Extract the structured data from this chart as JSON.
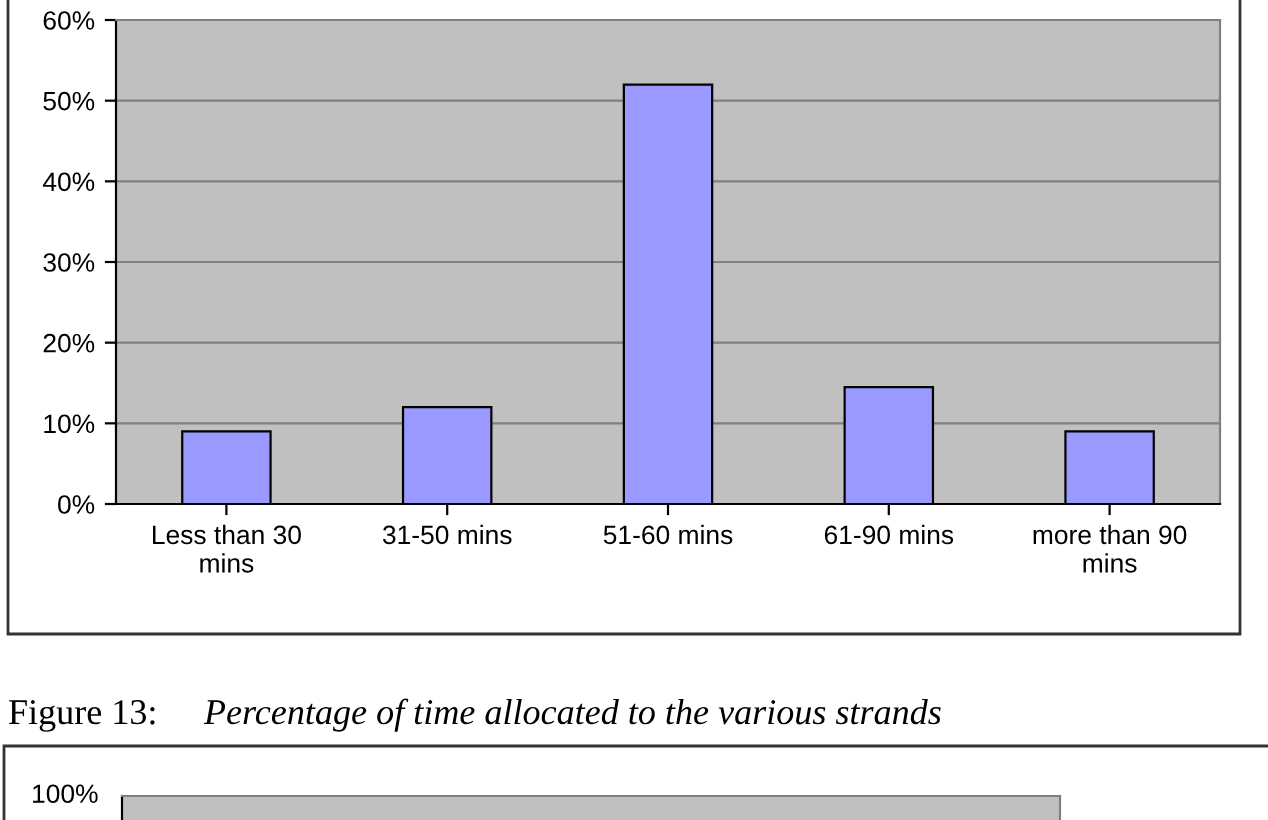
{
  "chart_data": [
    {
      "type": "bar",
      "categories": [
        "Less than 30\nmins",
        "31-50 mins",
        "51-60 mins",
        "61-90 mins",
        "more than 90\nmins"
      ],
      "values": [
        9,
        12,
        52,
        14.5,
        9
      ],
      "color": "#9999ff",
      "ylim": [
        0,
        60
      ],
      "yticks": [
        {
          "value": 0,
          "label": "0%"
        },
        {
          "value": 10,
          "label": "10%"
        },
        {
          "value": 20,
          "label": "20%"
        },
        {
          "value": 30,
          "label": "30%"
        },
        {
          "value": 40,
          "label": "40%"
        },
        {
          "value": 50,
          "label": "50%"
        },
        {
          "value": 60,
          "label": "60%"
        }
      ],
      "grid": "y"
    },
    {
      "type": "other",
      "annotations": [
        "Figure 13:",
        "Percentage of time allocated to the various strands",
        "100%"
      ]
    }
  ]
}
